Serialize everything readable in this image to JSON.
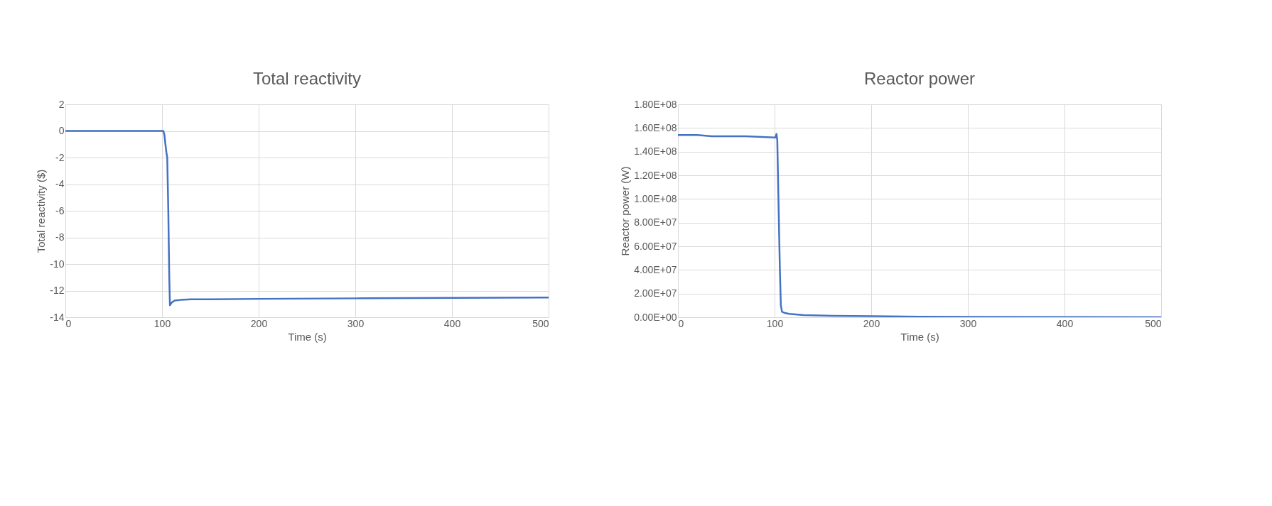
{
  "chart_data": [
    {
      "type": "line",
      "title": "Total reactivity",
      "xlabel": "Time (s)",
      "ylabel": "Total reactivity ($)",
      "x": [
        0,
        50,
        100,
        101.4,
        102.5,
        103.5,
        104.5,
        105.4,
        106.5,
        107.5,
        108.2,
        110,
        113,
        119,
        130,
        150,
        200,
        300,
        400,
        500
      ],
      "series": [
        {
          "color": "#4472c4",
          "values": [
            0,
            0,
            0,
            0,
            -0.3,
            -1.0,
            -1.6,
            -2,
            -6,
            -11,
            -13.1,
            -12.9,
            -12.75,
            -12.7,
            -12.65,
            -12.65,
            -12.62,
            -12.58,
            -12.55,
            -12.52
          ]
        }
      ],
      "xlim": [
        0,
        500
      ],
      "xticks": [
        0,
        100,
        200,
        300,
        400,
        500
      ],
      "ylim": [
        -14,
        2
      ],
      "yticks": [
        -14,
        -12,
        -10,
        -8,
        -6,
        -4,
        -2,
        0,
        2
      ],
      "grid": true,
      "marker": "none",
      "line_style": "solid"
    },
    {
      "type": "line",
      "title": "Reactor power",
      "xlabel": "Time (s)",
      "ylabel": "Reactor power (W)",
      "x": [
        0,
        20,
        35,
        44,
        70,
        100,
        101,
        102,
        102.8,
        104,
        105.5,
        106.5,
        107.7,
        110,
        115,
        130,
        160,
        200,
        250,
        300,
        400,
        500
      ],
      "series": [
        {
          "color": "#4472c4",
          "values": [
            154000000,
            154000000,
            153000000,
            153000000,
            153000000,
            152000000,
            152000000,
            155000000,
            150000000,
            100000000,
            40000000,
            10000000,
            4600000,
            3800000,
            2800000,
            1800000,
            1200000,
            900000,
            500000,
            300000,
            100000,
            0
          ]
        }
      ],
      "xlim": [
        0,
        500
      ],
      "xticks": [
        0,
        100,
        200,
        300,
        400,
        500
      ],
      "ylim": [
        0,
        180000000
      ],
      "yticks": [
        {
          "value": 0,
          "label": "0.00E+00"
        },
        {
          "value": 20000000,
          "label": "2.00E+07"
        },
        {
          "value": 40000000,
          "label": "4.00E+07"
        },
        {
          "value": 60000000,
          "label": "6.00E+07"
        },
        {
          "value": 80000000,
          "label": "8.00E+07"
        },
        {
          "value": 100000000,
          "label": "1.00E+08"
        },
        {
          "value": 120000000,
          "label": "1.20E+08"
        },
        {
          "value": 140000000,
          "label": "1.40E+08"
        },
        {
          "value": 160000000,
          "label": "1.60E+08"
        },
        {
          "value": 180000000,
          "label": "1.80E+08"
        }
      ],
      "grid": true,
      "marker": "none",
      "line_style": "solid"
    }
  ]
}
